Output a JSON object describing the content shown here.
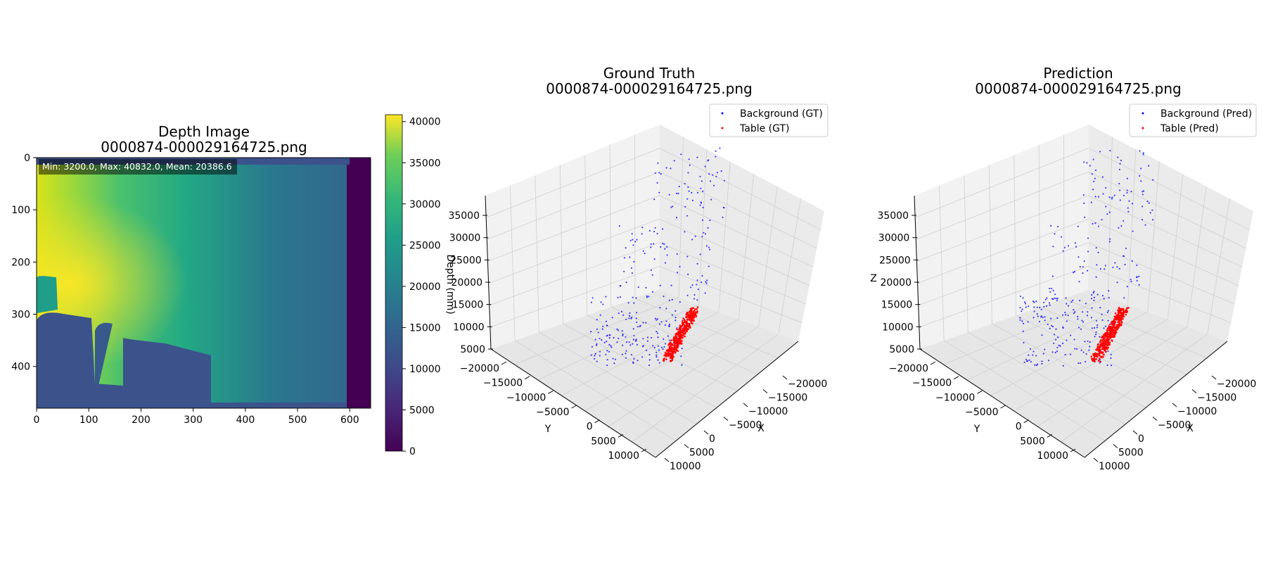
{
  "chart_data": [
    {
      "type": "heatmap",
      "title_line1": "Depth Image",
      "title_line2": "0000874-000029164725.png",
      "stats_text": "Min: 3200.0, Max: 40832.0, Mean: 20386.6",
      "xlim": [
        0,
        640
      ],
      "ylim": [
        480,
        0
      ],
      "x_ticks": [
        "0",
        "100",
        "200",
        "300",
        "400",
        "500",
        "600"
      ],
      "y_ticks": [
        "0",
        "100",
        "200",
        "300",
        "400"
      ],
      "colorbar": {
        "label": "Depth (mm)",
        "range": [
          0,
          40832
        ],
        "ticks": [
          "0",
          "5000",
          "10000",
          "15000",
          "20000",
          "25000",
          "30000",
          "35000",
          "40000"
        ],
        "colormap": "viridis"
      }
    },
    {
      "type": "scatter",
      "title_line1": "Ground Truth",
      "title_line2": "0000874-000029164725.png",
      "xlabel": "X",
      "ylabel": "Y",
      "zlabel": "",
      "x_ticks": [
        "10000",
        "5000",
        "0",
        "−5000",
        "−10000",
        "−15000",
        "−20000"
      ],
      "y_ticks": [
        "−20000",
        "−15000",
        "−10000",
        "−5000",
        "0",
        "5000",
        "10000"
      ],
      "z_ticks": [
        "5000",
        "10000",
        "15000",
        "20000",
        "25000",
        "30000",
        "35000"
      ],
      "series": [
        {
          "name": "Background (GT)",
          "color": "#0000ff",
          "approx_points": 300
        },
        {
          "name": "Table (GT)",
          "color": "#ff0000",
          "approx_points": 400
        }
      ],
      "legend": "top-right"
    },
    {
      "type": "scatter",
      "title_line1": "Prediction",
      "title_line2": "0000874-000029164725.png",
      "xlabel": "X",
      "ylabel": "Y",
      "zlabel": "Z",
      "x_ticks": [
        "10000",
        "5000",
        "0",
        "−5000",
        "−10000",
        "−15000",
        "−20000"
      ],
      "y_ticks": [
        "−20000",
        "−15000",
        "−10000",
        "−5000",
        "0",
        "5000",
        "10000"
      ],
      "z_ticks": [
        "5000",
        "10000",
        "15000",
        "20000",
        "25000",
        "30000",
        "35000"
      ],
      "series": [
        {
          "name": "Background (Pred)",
          "color": "#0000ff",
          "approx_points": 300
        },
        {
          "name": "Table (Pred)",
          "color": "#ff0000",
          "approx_points": 400
        }
      ],
      "legend": "top-right"
    }
  ]
}
